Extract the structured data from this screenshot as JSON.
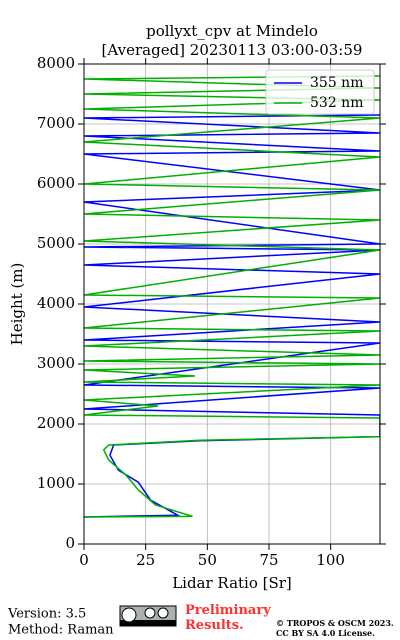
{
  "chart_data": {
    "type": "line",
    "title": "pollyxt_cpv at Mindelo",
    "subtitle": "[Averaged] 20230113 03:00-03:59",
    "x_label": "Lidar Ratio [Sr]",
    "y_label": "Height (m)",
    "xlim": [
      0,
      120
    ],
    "xticks": [
      0,
      25,
      50,
      75,
      100
    ],
    "ylim": [
      0,
      8000
    ],
    "yticks": [
      0,
      1000,
      2000,
      3000,
      4000,
      5000,
      6000,
      7000,
      8000
    ],
    "grid": true,
    "legend": "upper right",
    "series": [
      {
        "name": "355 nm",
        "color": "#0000ff",
        "height": [
          450,
          480,
          730,
          1030,
          1230,
          1480,
          1650,
          1720,
          1790,
          2150,
          2250,
          2600,
          2650,
          3350,
          3400,
          3700,
          3950,
          4500,
          4650,
          4900,
          4950,
          5000,
          5700,
          5900,
          6500,
          6550,
          6800,
          6850,
          7100,
          7150
        ],
        "values": [
          0,
          38,
          27,
          22,
          14,
          10.5,
          12,
          47,
          120,
          120,
          0,
          120,
          0,
          120,
          0,
          120,
          0,
          120,
          0,
          120,
          0,
          120,
          0,
          120,
          0,
          120,
          0,
          120,
          0,
          120
        ]
      },
      {
        "name": "532 nm",
        "color": "#00b000",
        "height": [
          450,
          460,
          650,
          900,
          1150,
          1400,
          1570,
          1650,
          1730,
          1790,
          2100,
          2150,
          2300,
          2400,
          2650,
          2700,
          2800,
          2900,
          3000,
          3050,
          3150,
          3300,
          3550,
          3600,
          4100,
          4150,
          4900,
          5050,
          5400,
          5500,
          5900,
          6000,
          6450,
          6700,
          7100,
          7250,
          7400,
          7500,
          7600,
          7750,
          7800
        ],
        "values": [
          0,
          44,
          29,
          22,
          17,
          10,
          8,
          10,
          47,
          120,
          120,
          0,
          30,
          0,
          120,
          0,
          45,
          0,
          120,
          0,
          120,
          0,
          120,
          0,
          120,
          0,
          120,
          0,
          120,
          0,
          120,
          0,
          120,
          0,
          120,
          0,
          120,
          0,
          120,
          0,
          120
        ]
      }
    ]
  },
  "footer": {
    "version": "Version: 3.5",
    "method": "Method: Raman",
    "status": "Preliminary Results.",
    "copyright": "© TROPOS & OSCM 2023.",
    "license": "CC BY SA 4.0 License."
  }
}
